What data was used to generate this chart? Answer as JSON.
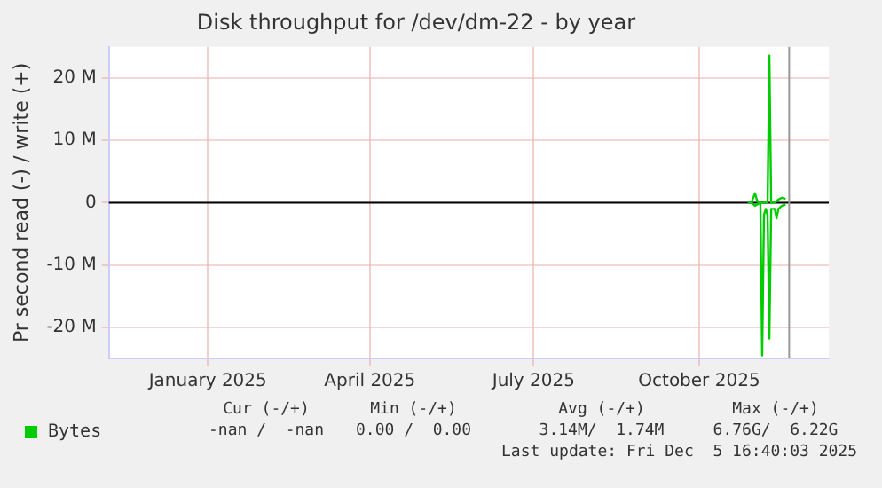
{
  "chart_data": {
    "type": "line",
    "title": "Disk throughput for /dev/dm-22 - by year",
    "ylabel": "Pr second read (-) / write (+)",
    "xlim": [
      "2024-11-07",
      "2025-12-12"
    ],
    "xticks": [
      {
        "value": "2025-01-01",
        "label": "January 2025"
      },
      {
        "value": "2025-04-01",
        "label": "April 2025"
      },
      {
        "value": "2025-07-01",
        "label": "July 2025"
      },
      {
        "value": "2025-10-01",
        "label": "October 2025"
      }
    ],
    "ylim": [
      -25000000,
      25000000
    ],
    "yticks": [
      {
        "value": -20000000,
        "label": "-20 M"
      },
      {
        "value": -10000000,
        "label": "-10 M"
      },
      0,
      {
        "value": 10000000,
        "label": "10 M"
      },
      {
        "value": 20000000,
        "label": "20 M"
      }
    ],
    "series": [
      {
        "name": "Bytes",
        "color": "#00cc00",
        "x": [
          "2025-10-28",
          "2025-10-30",
          "2025-11-01",
          "2025-11-02",
          "2025-11-03",
          "2025-11-08",
          "2025-11-09",
          "2025-11-10",
          "2025-11-12",
          "2025-11-14",
          "2025-11-16",
          "2025-11-18"
        ],
        "values": [
          0,
          0,
          1500000,
          500000,
          0,
          0,
          23600000,
          0,
          0,
          500000,
          800000,
          600000
        ]
      },
      {
        "color": "#00cc00",
        "x": [
          "2025-10-30",
          "2025-11-01",
          "2025-11-04",
          "2025-11-05",
          "2025-11-06",
          "2025-11-07",
          "2025-11-08",
          "2025-11-09",
          "2025-11-10",
          "2025-11-12",
          "2025-11-13",
          "2025-11-14",
          "2025-11-16",
          "2025-11-18"
        ],
        "values": [
          0,
          -500000,
          0,
          -24500000,
          -2000000,
          -1000000,
          -2000000,
          -21800000,
          -1000000,
          -1000000,
          -2500000,
          -1000000,
          -500000,
          -300000
        ]
      }
    ],
    "ref_lines": [
      {
        "axis": "y",
        "value": 0,
        "color": "#000000"
      },
      {
        "axis": "x",
        "value": "2025-11-20",
        "color": "#999999"
      }
    ],
    "grid": true,
    "legend": "bottom left",
    "marker": "none",
    "line_style": "solid",
    "annotations": [
      "Cur (-/+)",
      "Min (-/+)",
      "Avg (-/+)",
      "Max (-/+)",
      "-nan /  -nan",
      "0.00 /  0.00",
      "3.14M/  1.74M",
      "6.76G/  6.22G",
      "Last update: Fri Dec  5 16:40:03 2025"
    ]
  }
}
